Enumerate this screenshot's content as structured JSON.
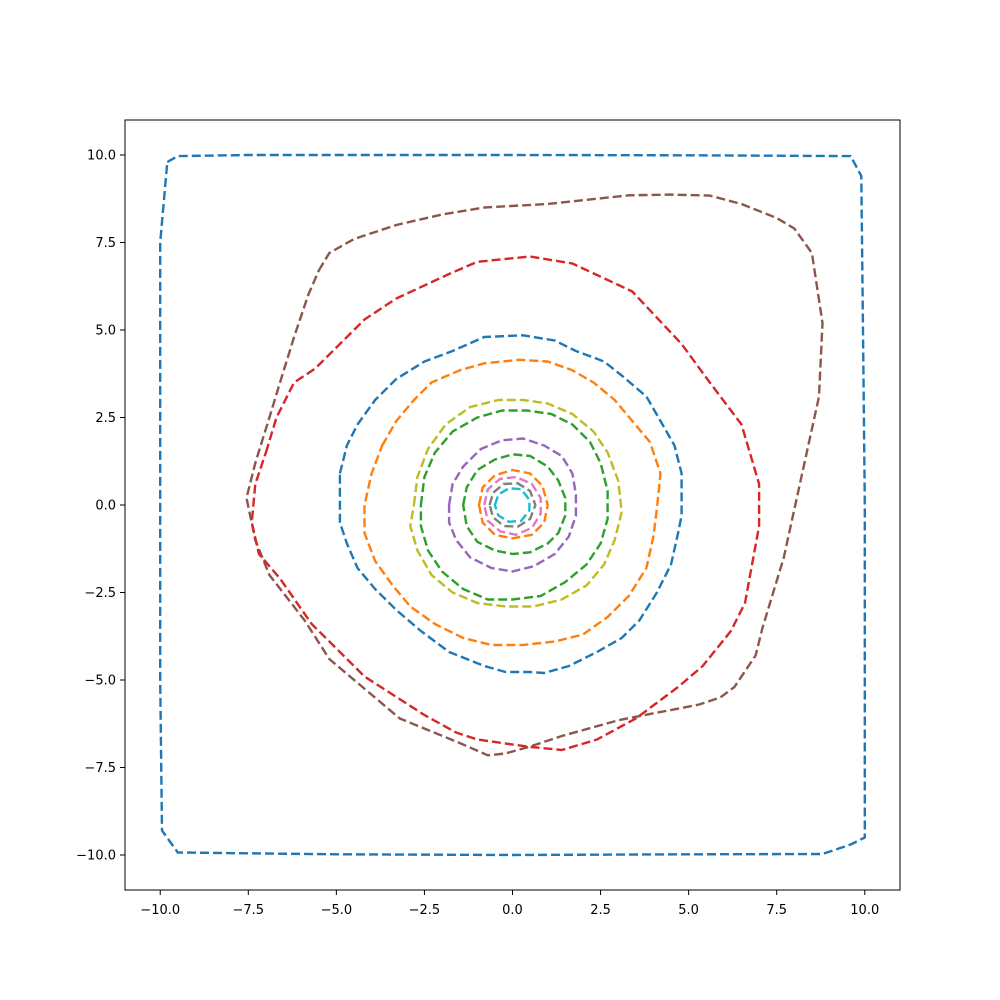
{
  "chart_data": {
    "type": "line",
    "title": "",
    "xlabel": "",
    "ylabel": "",
    "xlim": [
      -11,
      11
    ],
    "ylim": [
      -11,
      11
    ],
    "grid": false,
    "legend": "none",
    "x_ticks": [
      -10.0,
      -7.5,
      -5.0,
      -2.5,
      0.0,
      2.5,
      5.0,
      7.5,
      10.0
    ],
    "y_ticks": [
      -10.0,
      -7.5,
      -5.0,
      -2.5,
      0.0,
      2.5,
      5.0,
      7.5,
      10.0
    ],
    "x_tick_labels": [
      "−10.0",
      "−7.5",
      "−5.0",
      "−2.5",
      "0.0",
      "2.5",
      "5.0",
      "7.5",
      "10.0"
    ],
    "y_tick_labels": [
      "−10.0",
      "−7.5",
      "−5.0",
      "−2.5",
      "0.0",
      "2.5",
      "5.0",
      "7.5",
      "10.0"
    ],
    "series": [
      {
        "color": "#1f77b4",
        "points": [
          [
            -9.8,
            9.8
          ],
          [
            -9.5,
            9.97
          ],
          [
            -7.5,
            10
          ],
          [
            -5,
            10
          ],
          [
            0,
            10
          ],
          [
            5,
            9.99
          ],
          [
            9.6,
            9.97
          ],
          [
            9.9,
            9.4
          ],
          [
            9.95,
            5
          ],
          [
            10,
            0
          ],
          [
            10,
            -5
          ],
          [
            10,
            -9.5
          ],
          [
            9.6,
            -9.7
          ],
          [
            8.8,
            -9.97
          ],
          [
            5,
            -9.98
          ],
          [
            0,
            -10
          ],
          [
            -5,
            -9.98
          ],
          [
            -9.5,
            -9.93
          ],
          [
            -9.95,
            -9.3
          ],
          [
            -10,
            -5
          ],
          [
            -10,
            0
          ],
          [
            -10,
            5
          ],
          [
            -10,
            7.5
          ]
        ]
      },
      {
        "color": "#8c564b",
        "points": [
          [
            -5.5,
            6.7
          ],
          [
            -5.2,
            7.2
          ],
          [
            -4.5,
            7.6
          ],
          [
            -3.3,
            8
          ],
          [
            -2,
            8.3
          ],
          [
            -0.8,
            8.5
          ],
          [
            1,
            8.6
          ],
          [
            3.3,
            8.85
          ],
          [
            4.5,
            8.87
          ],
          [
            5.6,
            8.84
          ],
          [
            6.5,
            8.6
          ],
          [
            7.5,
            8.2
          ],
          [
            8,
            7.9
          ],
          [
            8.5,
            7.2
          ],
          [
            8.8,
            5.2
          ],
          [
            8.7,
            3.1
          ],
          [
            8.2,
            0.8
          ],
          [
            7.7,
            -1.5
          ],
          [
            7.1,
            -3.5
          ],
          [
            6.9,
            -4.3
          ],
          [
            6.3,
            -5.2
          ],
          [
            5.9,
            -5.5
          ],
          [
            5.3,
            -5.7
          ],
          [
            4.8,
            -5.8
          ],
          [
            4,
            -5.95
          ],
          [
            3,
            -6.15
          ],
          [
            1.4,
            -6.6
          ],
          [
            0.5,
            -6.9
          ],
          [
            -0.2,
            -7.1
          ],
          [
            -0.7,
            -7.15
          ],
          [
            -1.5,
            -6.8
          ],
          [
            -3.2,
            -6.1
          ],
          [
            -5.2,
            -4.4
          ],
          [
            -5.9,
            -3.3
          ],
          [
            -6.9,
            -2
          ],
          [
            -7.3,
            -1
          ],
          [
            -7.55,
            0.2
          ],
          [
            -7.3,
            1.2
          ],
          [
            -6.9,
            2.5
          ],
          [
            -6.6,
            3.5
          ],
          [
            -6.2,
            4.8
          ],
          [
            -5.8,
            6
          ]
        ]
      },
      {
        "color": "#d62728",
        "points": [
          [
            -7,
            1.5
          ],
          [
            -6.7,
            2.5
          ],
          [
            -6.2,
            3.5
          ],
          [
            -5.6,
            3.9
          ],
          [
            -4.2,
            5.3
          ],
          [
            -3.3,
            5.9
          ],
          [
            -1.8,
            6.6
          ],
          [
            -1,
            6.95
          ],
          [
            0.5,
            7.1
          ],
          [
            1.7,
            6.9
          ],
          [
            3.4,
            6.1
          ],
          [
            4.8,
            4.6
          ],
          [
            5.6,
            3.5
          ],
          [
            6.5,
            2.3
          ],
          [
            7,
            0.6
          ],
          [
            7,
            -0.6
          ],
          [
            6.6,
            -2.8
          ],
          [
            6.2,
            -3.6
          ],
          [
            5.4,
            -4.6
          ],
          [
            4.7,
            -5.2
          ],
          [
            3.5,
            -6.1
          ],
          [
            2.4,
            -6.7
          ],
          [
            1.4,
            -7
          ],
          [
            0.9,
            -6.95
          ],
          [
            0.4,
            -6.9
          ],
          [
            -1,
            -6.7
          ],
          [
            -1.6,
            -6.5
          ],
          [
            -2.5,
            -6
          ],
          [
            -4.2,
            -4.9
          ],
          [
            -5.7,
            -3.4
          ],
          [
            -6.6,
            -2.1
          ],
          [
            -7.2,
            -1.4
          ],
          [
            -7.4,
            -0.5
          ],
          [
            -7.3,
            0.6
          ]
        ]
      },
      {
        "color": "#1f77b4",
        "points": [
          [
            -4.9,
            0.9
          ],
          [
            -4.7,
            1.7
          ],
          [
            -4.4,
            2.3
          ],
          [
            -3.9,
            3
          ],
          [
            -3.3,
            3.6
          ],
          [
            -2.5,
            4.1
          ],
          [
            -1.7,
            4.4
          ],
          [
            -0.8,
            4.8
          ],
          [
            0.3,
            4.85
          ],
          [
            1.2,
            4.7
          ],
          [
            1.8,
            4.4
          ],
          [
            2.6,
            4.1
          ],
          [
            3.1,
            3.7
          ],
          [
            3.8,
            3.1
          ],
          [
            4.2,
            2.4
          ],
          [
            4.6,
            1.7
          ],
          [
            4.8,
            0.9
          ],
          [
            4.8,
            -0.3
          ],
          [
            4.7,
            -0.8
          ],
          [
            4.5,
            -1.7
          ],
          [
            4.1,
            -2.5
          ],
          [
            3.6,
            -3.3
          ],
          [
            3.1,
            -3.8
          ],
          [
            2.4,
            -4.2
          ],
          [
            1.6,
            -4.6
          ],
          [
            0.9,
            -4.8
          ],
          [
            0.5,
            -4.77
          ],
          [
            -0.2,
            -4.77
          ],
          [
            -0.8,
            -4.6
          ],
          [
            -1.8,
            -4.2
          ],
          [
            -2.6,
            -3.6
          ],
          [
            -3.3,
            -3
          ],
          [
            -3.9,
            -2.4
          ],
          [
            -4.4,
            -1.8
          ],
          [
            -4.7,
            -1.1
          ],
          [
            -4.9,
            -0.5
          ],
          [
            -4.9,
            0.3
          ]
        ]
      },
      {
        "color": "#ff7f0e",
        "points": [
          [
            -3.7,
            1.7
          ],
          [
            -3.3,
            2.4
          ],
          [
            -2.8,
            3
          ],
          [
            -2.3,
            3.5
          ],
          [
            -1.5,
            3.85
          ],
          [
            -0.8,
            4.05
          ],
          [
            0.2,
            4.15
          ],
          [
            1,
            4.1
          ],
          [
            1.7,
            3.85
          ],
          [
            2.3,
            3.5
          ],
          [
            2.9,
            3
          ],
          [
            3.4,
            2.4
          ],
          [
            3.9,
            1.8
          ],
          [
            4.2,
            0.9
          ],
          [
            4.1,
            -0.1
          ],
          [
            4,
            -0.9
          ],
          [
            3.8,
            -1.8
          ],
          [
            3.3,
            -2.6
          ],
          [
            2.7,
            -3.2
          ],
          [
            2,
            -3.7
          ],
          [
            1.2,
            -3.9
          ],
          [
            0.3,
            -4
          ],
          [
            -0.6,
            -4
          ],
          [
            -1.4,
            -3.8
          ],
          [
            -2.2,
            -3.4
          ],
          [
            -2.9,
            -2.9
          ],
          [
            -3.4,
            -2.3
          ],
          [
            -3.9,
            -1.6
          ],
          [
            -4.2,
            -0.8
          ],
          [
            -4.2,
            0
          ],
          [
            -4,
            0.9
          ]
        ]
      },
      {
        "color": "#bcbd22",
        "points": [
          [
            -2.8,
            0
          ],
          [
            -2.7,
            0.8
          ],
          [
            -2.4,
            1.6
          ],
          [
            -1.9,
            2.3
          ],
          [
            -1.2,
            2.8
          ],
          [
            -0.4,
            3
          ],
          [
            0.3,
            3
          ],
          [
            1,
            2.9
          ],
          [
            1.7,
            2.6
          ],
          [
            2.3,
            2.1
          ],
          [
            2.7,
            1.5
          ],
          [
            3,
            0.7
          ],
          [
            3.1,
            -0.2
          ],
          [
            2.9,
            -1
          ],
          [
            2.6,
            -1.7
          ],
          [
            2.1,
            -2.3
          ],
          [
            1.4,
            -2.7
          ],
          [
            0.6,
            -2.9
          ],
          [
            -0.2,
            -2.9
          ],
          [
            -1,
            -2.8
          ],
          [
            -1.7,
            -2.5
          ],
          [
            -2.3,
            -2
          ],
          [
            -2.7,
            -1.3
          ],
          [
            -2.9,
            -0.6
          ]
        ]
      },
      {
        "color": "#2ca02c",
        "points": [
          [
            -2.6,
            0
          ],
          [
            -2.5,
            0.8
          ],
          [
            -2.2,
            1.5
          ],
          [
            -1.7,
            2.1
          ],
          [
            -1,
            2.5
          ],
          [
            -0.3,
            2.7
          ],
          [
            0.4,
            2.7
          ],
          [
            1.1,
            2.6
          ],
          [
            1.7,
            2.3
          ],
          [
            2.2,
            1.8
          ],
          [
            2.5,
            1.2
          ],
          [
            2.7,
            0.4
          ],
          [
            2.7,
            -0.4
          ],
          [
            2.5,
            -1.1
          ],
          [
            2.1,
            -1.7
          ],
          [
            1.5,
            -2.2
          ],
          [
            0.8,
            -2.6
          ],
          [
            0,
            -2.7
          ],
          [
            -0.7,
            -2.7
          ],
          [
            -1.4,
            -2.4
          ],
          [
            -2,
            -1.9
          ],
          [
            -2.4,
            -1.3
          ],
          [
            -2.6,
            -0.6
          ]
        ]
      },
      {
        "color": "#9467bd",
        "points": [
          [
            -1.8,
            0
          ],
          [
            -1.7,
            0.6
          ],
          [
            -1.4,
            1.1
          ],
          [
            -0.9,
            1.6
          ],
          [
            -0.3,
            1.85
          ],
          [
            0.3,
            1.9
          ],
          [
            0.9,
            1.7
          ],
          [
            1.4,
            1.4
          ],
          [
            1.7,
            0.9
          ],
          [
            1.8,
            0.3
          ],
          [
            1.8,
            -0.3
          ],
          [
            1.6,
            -0.9
          ],
          [
            1.2,
            -1.4
          ],
          [
            0.6,
            -1.75
          ],
          [
            0,
            -1.9
          ],
          [
            -0.6,
            -1.8
          ],
          [
            -1.2,
            -1.5
          ],
          [
            -1.6,
            -1
          ],
          [
            -1.8,
            -0.5
          ]
        ]
      },
      {
        "color": "#2ca02c",
        "points": [
          [
            -1.4,
            0
          ],
          [
            -1.3,
            0.5
          ],
          [
            -1,
            1
          ],
          [
            -0.5,
            1.3
          ],
          [
            0,
            1.45
          ],
          [
            0.5,
            1.4
          ],
          [
            1,
            1.1
          ],
          [
            1.3,
            0.7
          ],
          [
            1.5,
            0.2
          ],
          [
            1.5,
            -0.3
          ],
          [
            1.3,
            -0.8
          ],
          [
            1,
            -1.1
          ],
          [
            0.5,
            -1.35
          ],
          [
            0,
            -1.4
          ],
          [
            -0.5,
            -1.3
          ],
          [
            -1,
            -1.05
          ],
          [
            -1.3,
            -0.6
          ]
        ]
      },
      {
        "color": "#ff7f0e",
        "points": [
          [
            -0.95,
            0
          ],
          [
            -0.85,
            0.5
          ],
          [
            -0.5,
            0.85
          ],
          [
            0,
            1
          ],
          [
            0.5,
            0.9
          ],
          [
            0.85,
            0.55
          ],
          [
            1,
            0
          ],
          [
            0.9,
            -0.5
          ],
          [
            0.55,
            -0.85
          ],
          [
            0,
            -0.95
          ],
          [
            -0.5,
            -0.85
          ],
          [
            -0.85,
            -0.5
          ]
        ]
      },
      {
        "color": "#e377c2",
        "points": [
          [
            -0.8,
            0
          ],
          [
            -0.7,
            0.45
          ],
          [
            -0.35,
            0.75
          ],
          [
            0.1,
            0.8
          ],
          [
            0.55,
            0.6
          ],
          [
            0.8,
            0.2
          ],
          [
            0.8,
            -0.25
          ],
          [
            0.55,
            -0.65
          ],
          [
            0.1,
            -0.85
          ],
          [
            -0.35,
            -0.75
          ],
          [
            -0.7,
            -0.45
          ]
        ]
      },
      {
        "color": "#7f7f7f",
        "points": [
          [
            -0.65,
            0
          ],
          [
            -0.55,
            0.35
          ],
          [
            -0.25,
            0.6
          ],
          [
            0.15,
            0.62
          ],
          [
            0.5,
            0.4
          ],
          [
            0.65,
            0
          ],
          [
            0.5,
            -0.4
          ],
          [
            0.15,
            -0.62
          ],
          [
            -0.25,
            -0.6
          ],
          [
            -0.55,
            -0.35
          ]
        ]
      },
      {
        "color": "#17becf",
        "points": [
          [
            -0.5,
            0
          ],
          [
            -0.4,
            0.3
          ],
          [
            -0.1,
            0.48
          ],
          [
            0.25,
            0.45
          ],
          [
            0.48,
            0.15
          ],
          [
            0.48,
            -0.15
          ],
          [
            0.25,
            -0.45
          ],
          [
            -0.1,
            -0.48
          ],
          [
            -0.4,
            -0.3
          ]
        ]
      }
    ]
  }
}
